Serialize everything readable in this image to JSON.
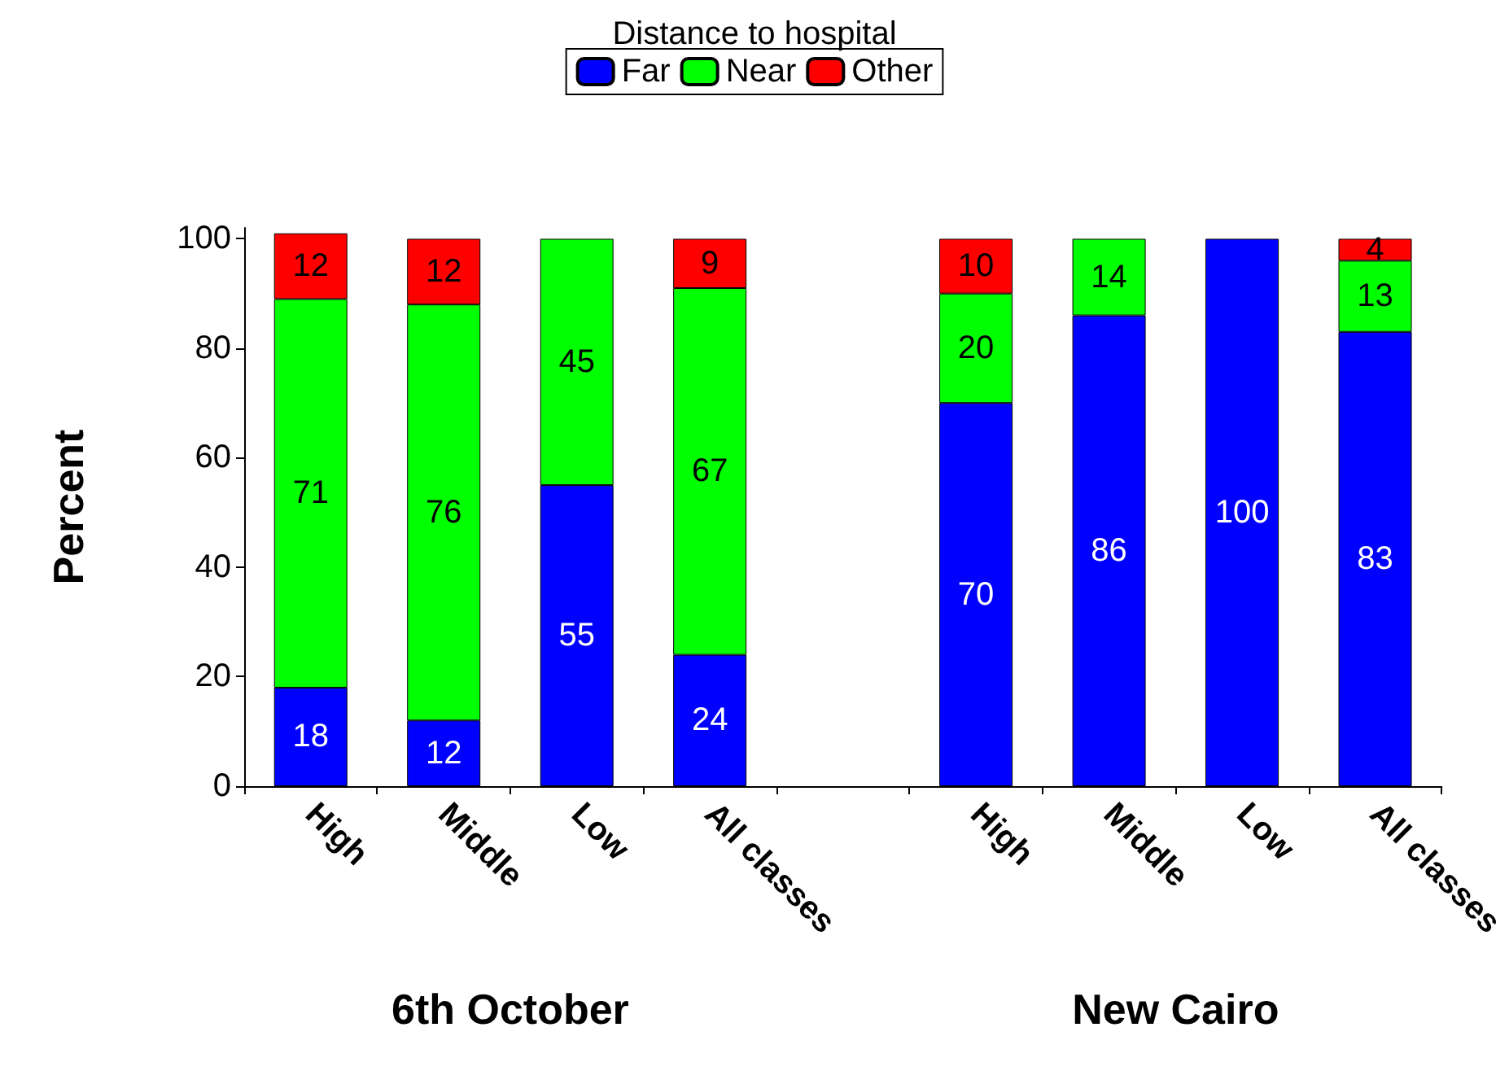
{
  "chart_data": {
    "type": "bar",
    "stacked": true,
    "ylabel": "Percent",
    "legend_title": "Distance to hospital",
    "legend": "top",
    "categories": [
      "High",
      "Middle",
      "Low",
      "All classes",
      null,
      "High",
      "Middle",
      "Low",
      "All classes"
    ],
    "series": [
      {
        "name": "Far",
        "color": "#0000ff",
        "values": [
          18,
          12,
          55,
          24,
          null,
          70,
          86,
          100,
          83
        ],
        "value_labels": [
          "18",
          "12",
          "55",
          "24",
          null,
          "70",
          "86",
          "100",
          "83"
        ]
      },
      {
        "name": "Near",
        "color": "#00ff00",
        "values": [
          71,
          76,
          45,
          67,
          null,
          20,
          14,
          null,
          13
        ],
        "value_labels": [
          "71",
          "76",
          "45",
          "67",
          null,
          "20",
          "14",
          null,
          "13"
        ]
      },
      {
        "name": "Other",
        "color": "#ff0000",
        "values": [
          12,
          12,
          null,
          9,
          null,
          10,
          null,
          null,
          4
        ],
        "value_labels": [
          "12",
          "12",
          null,
          "9",
          null,
          "10",
          null,
          null,
          "4"
        ]
      }
    ],
    "ylim": [
      0,
      102
    ],
    "yticks": [
      0,
      20,
      40,
      60,
      80,
      100
    ],
    "grid": false,
    "annotations": [
      "6th October",
      "New Cairo"
    ]
  }
}
